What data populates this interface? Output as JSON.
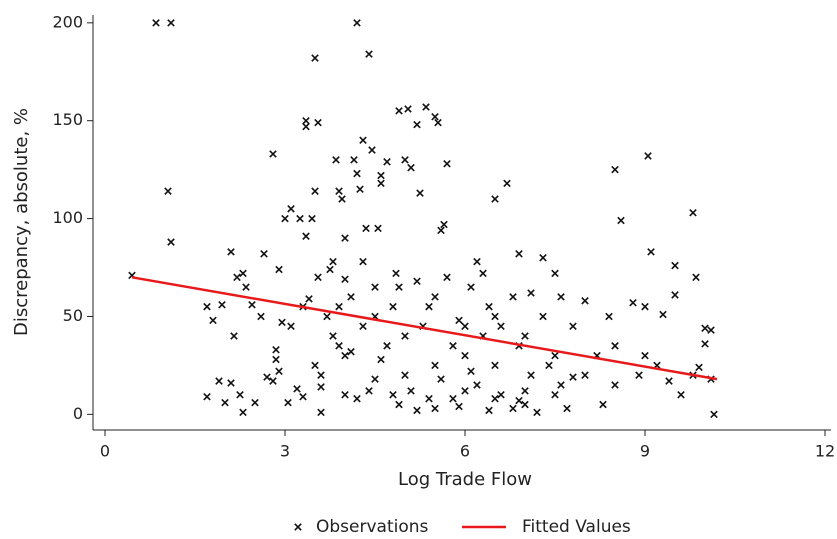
{
  "chart_data": {
    "type": "scatter",
    "xlabel": "Log Trade Flow",
    "ylabel": "Discrepancy, absolute, %",
    "xlim": [
      -0.2,
      12.1
    ],
    "ylim": [
      -8,
      204
    ],
    "xticks": [
      0,
      3,
      6,
      9,
      12
    ],
    "yticks": [
      0,
      50,
      100,
      150,
      200
    ],
    "grid": false,
    "legend": "bottom",
    "series": [
      {
        "name": "Observations",
        "type": "scatter",
        "color": "#111111",
        "x": [
          0.45,
          0.85,
          1.1,
          1.05,
          1.1,
          1.7,
          1.8,
          1.7,
          1.9,
          1.95,
          2.0,
          2.1,
          2.1,
          2.15,
          2.2,
          2.25,
          2.3,
          2.3,
          2.35,
          2.45,
          2.5,
          2.6,
          2.65,
          2.7,
          2.8,
          2.8,
          2.85,
          2.85,
          2.9,
          2.95,
          3.0,
          3.05,
          3.1,
          3.2,
          3.25,
          3.3,
          3.35,
          3.35,
          3.35,
          3.4,
          3.45,
          3.5,
          3.5,
          3.55,
          3.6,
          3.55,
          3.6,
          3.7,
          3.75,
          3.8,
          3.85,
          3.9,
          3.9,
          3.95,
          4.0,
          4.0,
          4.1,
          4.15,
          4.2,
          4.2,
          4.25,
          4.3,
          4.3,
          4.35,
          4.4,
          4.45,
          4.5,
          4.55,
          4.6,
          4.6,
          4.7,
          4.85,
          4.9,
          5.0,
          5.05,
          5.1,
          5.2,
          5.25,
          5.35,
          5.5,
          5.55,
          5.7,
          5.65,
          5.6,
          6.0,
          6.2,
          6.3,
          6.5,
          6.7,
          6.9,
          7.3,
          7.5,
          7.6,
          8.0,
          8.4,
          8.5,
          8.6,
          8.8,
          9.0,
          9.05,
          9.1,
          9.3,
          9.5,
          9.5,
          9.8,
          9.85,
          10.0,
          10.0,
          10.1,
          10.1,
          10.15,
          9.6,
          9.4,
          9.2,
          9.8,
          9.9,
          8.3,
          8.5,
          8.9,
          7.8,
          7.0,
          6.8,
          6.5,
          6.2,
          5.8,
          5.5,
          5.2,
          4.8,
          4.5,
          4.2,
          4.0,
          3.8,
          3.6,
          5.0,
          5.5,
          6.0,
          6.5,
          7.0,
          7.5,
          8.0,
          8.5,
          9.0,
          4.5,
          5.0,
          5.5,
          6.0,
          6.5,
          7.0,
          7.5,
          4.3,
          4.7,
          5.3,
          5.8,
          6.3,
          6.8,
          7.3,
          7.8,
          8.2,
          4.9,
          5.4,
          5.9,
          6.4,
          6.9,
          7.4,
          4.6,
          5.1,
          5.6,
          6.1,
          6.6,
          7.1,
          7.6,
          4.4,
          4.9,
          5.4,
          5.9,
          6.4,
          6.9,
          7.2,
          7.7,
          5.7,
          6.1,
          6.6,
          7.1,
          5.2,
          4.8,
          4.1,
          3.9,
          3.3,
          2.9,
          3.1,
          4.0,
          3.5
        ],
        "values": [
          71,
          200,
          200,
          114,
          88,
          55,
          48,
          9,
          17,
          56,
          6,
          16,
          83,
          40,
          70,
          10,
          1,
          72,
          65,
          56,
          6,
          50,
          82,
          19,
          17,
          133,
          33,
          28,
          74,
          47,
          100,
          6,
          105,
          13,
          100,
          9,
          91,
          150,
          147,
          59,
          100,
          182,
          114,
          149,
          1,
          70,
          14,
          50,
          74,
          78,
          130,
          114,
          55,
          110,
          90,
          69,
          32,
          130,
          200,
          123,
          115,
          78,
          140,
          95,
          184,
          135,
          65,
          95,
          122,
          118,
          129,
          72,
          155,
          130,
          156,
          126,
          148,
          113,
          157,
          152,
          149,
          128,
          97,
          94,
          45,
          78,
          72,
          110,
          118,
          82,
          80,
          72,
          60,
          58,
          50,
          125,
          99,
          57,
          55,
          132,
          83,
          51,
          76,
          61,
          103,
          70,
          44,
          36,
          18,
          43,
          0,
          10,
          17,
          25,
          20,
          24,
          5,
          15,
          20,
          19,
          12,
          3,
          25,
          15,
          8,
          3,
          2,
          10,
          18,
          8,
          30,
          40,
          20,
          40,
          60,
          30,
          50,
          40,
          30,
          20,
          35,
          30,
          50,
          20,
          25,
          12,
          8,
          5,
          10,
          45,
          35,
          45,
          35,
          40,
          60,
          50,
          45,
          30,
          65,
          55,
          48,
          55,
          35,
          25,
          28,
          12,
          18,
          22,
          10,
          20,
          15,
          12,
          5,
          8,
          4,
          2,
          7,
          1,
          3,
          70,
          65,
          45,
          62,
          68,
          55,
          60,
          35,
          55,
          22,
          45,
          10,
          25
        ]
      },
      {
        "name": "Fitted Values",
        "type": "line",
        "color": "#e8191b",
        "x": [
          0.45,
          10.2
        ],
        "values": [
          70,
          18
        ]
      }
    ]
  }
}
